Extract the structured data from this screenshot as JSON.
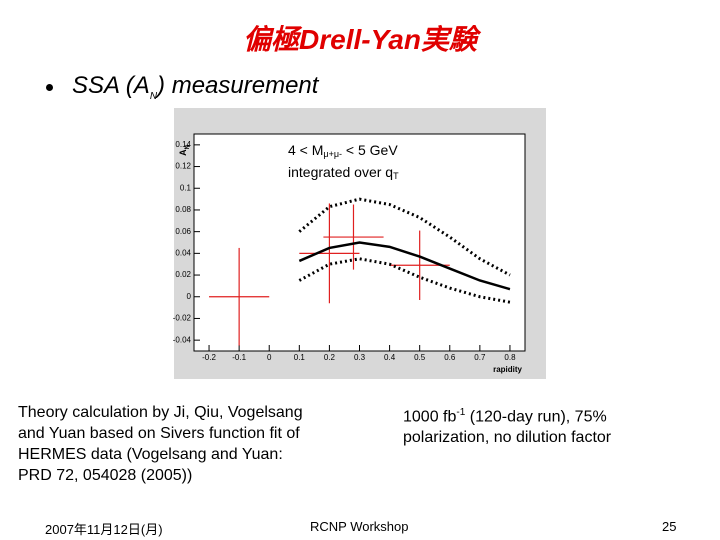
{
  "title": "偏極Drell-Yan実験",
  "bullet": [
    "SSA (A",
    "N",
    ") measurement"
  ],
  "left_text": [
    "Theory calculation by Ji, Qiu, Vogelsang",
    "and Yuan based on Sivers function fit of",
    "HERMES data (Vogelsang and Yuan:",
    "PRD 72, 054028 (2005))"
  ],
  "right_text": [
    [
      "1000 fb",
      "-1",
      " (120-day run), 75%"
    ],
    [
      "polarization, no dilution factor"
    ]
  ],
  "footer": {
    "date": "2007年11月12日(月)",
    "event": "RCNP Workshop",
    "page": "25"
  },
  "chart_data": {
    "type": "errorbar",
    "annotation": [
      [
        "4 < M",
        "μ+μ-",
        " < 5 GeV"
      ],
      [
        "integrated over q",
        "T"
      ]
    ],
    "y_label": [
      "A",
      "N"
    ],
    "x_label": "rapidity",
    "xlim": [
      -0.25,
      0.85
    ],
    "xticks": [
      -0.2,
      -0.1,
      0,
      0.1,
      0.2,
      0.3,
      0.4,
      0.5,
      0.6,
      0.7,
      0.8
    ],
    "ylim": [
      -0.05,
      0.15
    ],
    "yticks": [
      -0.04,
      -0.02,
      0,
      0.02,
      0.04,
      0.06,
      0.08,
      0.1,
      0.12,
      0.14
    ],
    "series": [
      {
        "kind": "errorbar",
        "color": "#e02020",
        "x": [
          -0.1,
          0.2,
          0.28,
          0.5
        ],
        "values": [
          0.0,
          0.04,
          0.055,
          0.029
        ],
        "xerr": [
          0.1,
          0.1,
          0.1,
          0.1
        ],
        "yerr": [
          0.045,
          0.046,
          0.03,
          0.032
        ]
      },
      {
        "kind": "line",
        "style": "solid",
        "color": "#000000",
        "x": [
          0.1,
          0.2,
          0.3,
          0.4,
          0.5,
          0.6,
          0.7,
          0.8
        ],
        "values": [
          0.033,
          0.045,
          0.05,
          0.046,
          0.037,
          0.026,
          0.015,
          0.007
        ]
      },
      {
        "kind": "line",
        "style": "dotted",
        "color": "#000000",
        "x": [
          0.1,
          0.2,
          0.3,
          0.4,
          0.5,
          0.6,
          0.7,
          0.8
        ],
        "values": [
          0.06,
          0.083,
          0.09,
          0.085,
          0.073,
          0.055,
          0.035,
          0.02
        ]
      },
      {
        "kind": "line",
        "style": "dotted",
        "color": "#000000",
        "x": [
          0.1,
          0.2,
          0.3,
          0.4,
          0.5,
          0.6,
          0.7,
          0.8
        ],
        "values": [
          0.015,
          0.03,
          0.035,
          0.03,
          0.018,
          0.008,
          0.0,
          -0.005
        ]
      }
    ]
  }
}
